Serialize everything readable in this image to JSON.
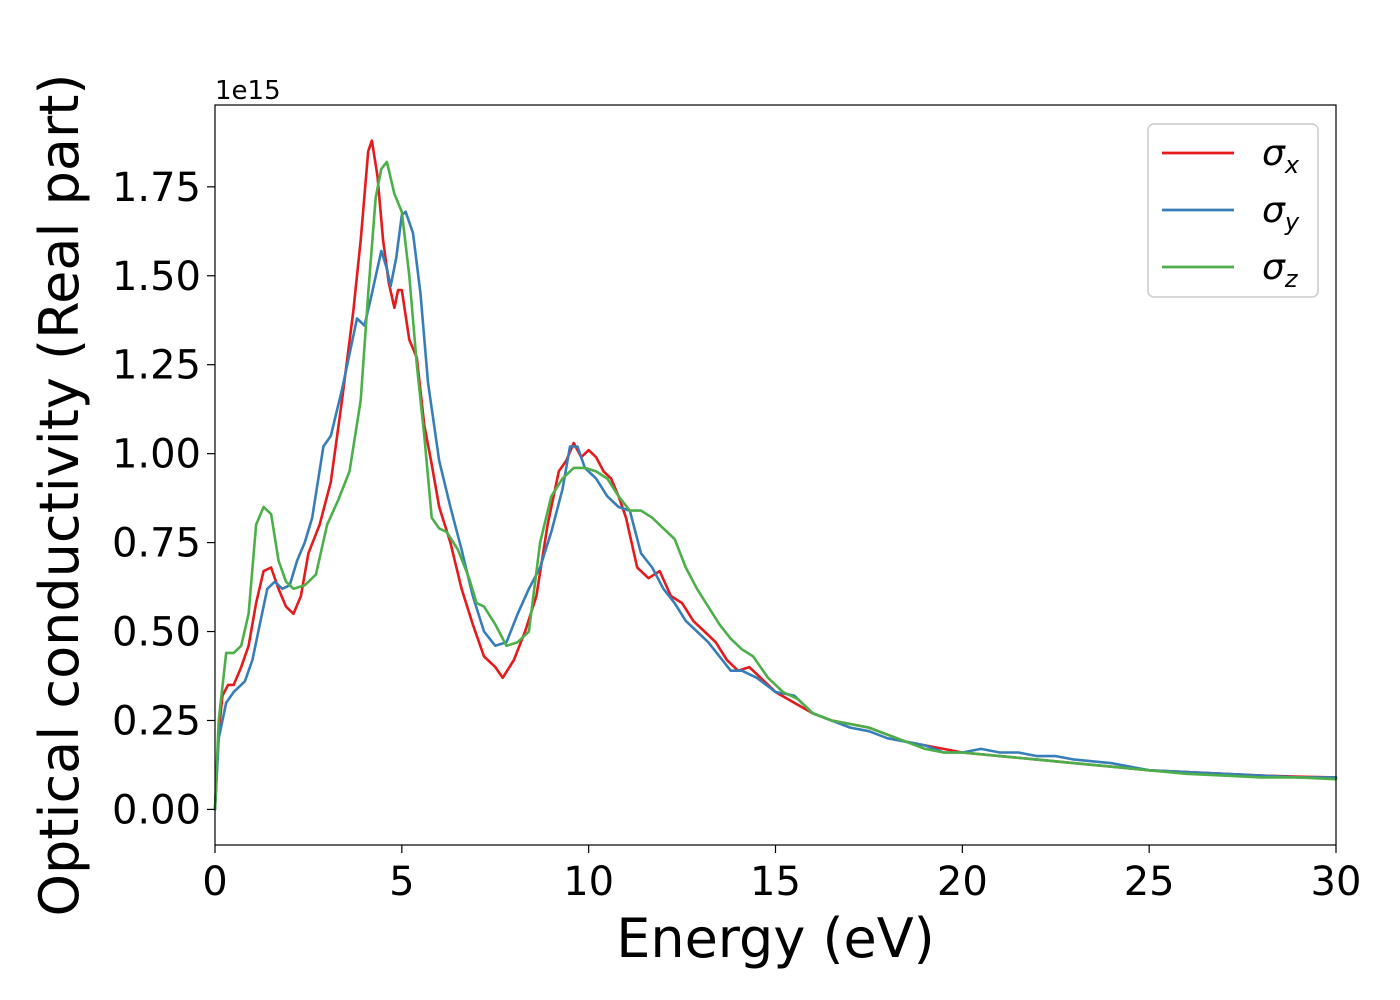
{
  "chart_data": {
    "type": "line",
    "xlabel": "Energy (eV)",
    "ylabel": "Optical conductivity (Real part)",
    "y_offset_label": "1e15",
    "xlim": [
      0,
      30
    ],
    "ylim": [
      -0.1,
      1.98
    ],
    "x_ticks": [
      0,
      5,
      10,
      15,
      20,
      25,
      30
    ],
    "x_tick_labels": [
      "0",
      "5",
      "10",
      "15",
      "20",
      "25",
      "30"
    ],
    "y_ticks": [
      0.0,
      0.25,
      0.5,
      0.75,
      1.0,
      1.25,
      1.5,
      1.75
    ],
    "y_tick_labels": [
      "0.00",
      "0.25",
      "0.50",
      "0.75",
      "1.00",
      "1.25",
      "1.50",
      "1.75"
    ],
    "grid": false,
    "legend_position": "top-right",
    "series": [
      {
        "name": "σx",
        "symbol": "σ",
        "subscript": "x",
        "color": "#e41a1c",
        "x": [
          0,
          0.1,
          0.2,
          0.35,
          0.5,
          0.7,
          0.9,
          1.1,
          1.3,
          1.5,
          1.7,
          1.9,
          2.1,
          2.3,
          2.5,
          2.8,
          3.1,
          3.4,
          3.7,
          3.9,
          4.1,
          4.2,
          4.35,
          4.5,
          4.65,
          4.8,
          4.9,
          5.0,
          5.2,
          5.4,
          5.6,
          5.8,
          6.0,
          6.3,
          6.6,
          6.9,
          7.2,
          7.5,
          7.7,
          8.0,
          8.3,
          8.6,
          8.9,
          9.2,
          9.4,
          9.6,
          9.8,
          10.0,
          10.2,
          10.4,
          10.6,
          10.8,
          11.0,
          11.3,
          11.6,
          11.9,
          12.2,
          12.5,
          12.8,
          13.1,
          13.4,
          13.7,
          14.0,
          14.3,
          14.7,
          15.0,
          15.5,
          16.0,
          16.5,
          17.0,
          17.5,
          18.0,
          18.5,
          19.0,
          19.5,
          20.0,
          21.0,
          22.0,
          23.0,
          24.0,
          25.0,
          26.0,
          27.0,
          28.0,
          29.0,
          30.0
        ],
        "y": [
          0.0,
          0.22,
          0.32,
          0.35,
          0.35,
          0.4,
          0.46,
          0.58,
          0.67,
          0.68,
          0.62,
          0.57,
          0.55,
          0.6,
          0.72,
          0.8,
          0.92,
          1.15,
          1.4,
          1.6,
          1.85,
          1.88,
          1.78,
          1.6,
          1.48,
          1.41,
          1.46,
          1.46,
          1.32,
          1.27,
          1.08,
          0.97,
          0.85,
          0.75,
          0.62,
          0.52,
          0.43,
          0.4,
          0.37,
          0.42,
          0.5,
          0.6,
          0.8,
          0.95,
          0.98,
          1.03,
          0.99,
          1.01,
          0.99,
          0.95,
          0.93,
          0.88,
          0.82,
          0.68,
          0.65,
          0.67,
          0.6,
          0.58,
          0.53,
          0.5,
          0.47,
          0.42,
          0.39,
          0.4,
          0.36,
          0.33,
          0.3,
          0.27,
          0.25,
          0.24,
          0.23,
          0.21,
          0.19,
          0.18,
          0.17,
          0.16,
          0.15,
          0.14,
          0.13,
          0.12,
          0.11,
          0.105,
          0.1,
          0.095,
          0.092,
          0.09
        ]
      },
      {
        "name": "σy",
        "symbol": "σ",
        "subscript": "y",
        "color": "#377eb8",
        "x": [
          0,
          0.1,
          0.3,
          0.5,
          0.8,
          1.0,
          1.2,
          1.4,
          1.6,
          1.8,
          2.0,
          2.2,
          2.4,
          2.6,
          2.9,
          3.1,
          3.4,
          3.8,
          4.0,
          4.2,
          4.45,
          4.6,
          4.7,
          4.85,
          5.0,
          5.1,
          5.3,
          5.5,
          5.7,
          6.0,
          6.3,
          6.6,
          6.9,
          7.2,
          7.5,
          7.8,
          8.1,
          8.4,
          8.7,
          9.0,
          9.3,
          9.5,
          9.7,
          9.9,
          10.2,
          10.5,
          10.8,
          11.1,
          11.4,
          11.7,
          12.0,
          12.3,
          12.6,
          12.9,
          13.2,
          13.5,
          13.8,
          14.1,
          14.5,
          15.0,
          15.5,
          16.0,
          16.5,
          17.0,
          17.5,
          18.0,
          18.5,
          19.0,
          19.5,
          20.0,
          20.5,
          21.0,
          21.5,
          22.0,
          22.5,
          23.0,
          24.0,
          25.0,
          26.0,
          27.0,
          28.0,
          29.0,
          30.0
        ],
        "y": [
          0.0,
          0.2,
          0.3,
          0.33,
          0.36,
          0.42,
          0.52,
          0.62,
          0.64,
          0.62,
          0.63,
          0.7,
          0.75,
          0.82,
          1.02,
          1.05,
          1.18,
          1.38,
          1.36,
          1.45,
          1.57,
          1.52,
          1.47,
          1.55,
          1.67,
          1.68,
          1.62,
          1.45,
          1.2,
          0.98,
          0.85,
          0.73,
          0.6,
          0.5,
          0.46,
          0.47,
          0.55,
          0.62,
          0.68,
          0.78,
          0.9,
          1.02,
          1.02,
          0.96,
          0.93,
          0.88,
          0.85,
          0.84,
          0.72,
          0.68,
          0.62,
          0.58,
          0.53,
          0.5,
          0.47,
          0.43,
          0.39,
          0.39,
          0.37,
          0.33,
          0.32,
          0.27,
          0.25,
          0.23,
          0.22,
          0.2,
          0.19,
          0.18,
          0.16,
          0.16,
          0.17,
          0.16,
          0.16,
          0.15,
          0.15,
          0.14,
          0.13,
          0.11,
          0.105,
          0.1,
          0.095,
          0.09,
          0.09
        ]
      },
      {
        "name": "σz",
        "symbol": "σ",
        "subscript": "z",
        "color": "#4daf4a",
        "x": [
          0,
          0.1,
          0.3,
          0.5,
          0.7,
          0.9,
          1.1,
          1.3,
          1.5,
          1.7,
          1.9,
          2.1,
          2.4,
          2.7,
          3.0,
          3.3,
          3.6,
          3.9,
          4.1,
          4.3,
          4.45,
          4.6,
          4.8,
          5.0,
          5.2,
          5.4,
          5.6,
          5.8,
          6.0,
          6.2,
          6.5,
          6.8,
          7.0,
          7.2,
          7.5,
          7.8,
          8.1,
          8.4,
          8.7,
          9.0,
          9.3,
          9.6,
          9.9,
          10.2,
          10.5,
          10.8,
          11.1,
          11.4,
          11.7,
          12.0,
          12.3,
          12.6,
          12.9,
          13.2,
          13.5,
          13.8,
          14.1,
          14.4,
          14.8,
          15.2,
          15.6,
          16.0,
          16.5,
          17.0,
          17.5,
          18.0,
          18.5,
          19.0,
          19.5,
          20.0,
          21.0,
          22.0,
          23.0,
          24.0,
          25.0,
          26.0,
          27.0,
          28.0,
          29.0,
          30.0
        ],
        "y": [
          0.0,
          0.25,
          0.44,
          0.44,
          0.46,
          0.55,
          0.8,
          0.85,
          0.83,
          0.7,
          0.64,
          0.62,
          0.63,
          0.66,
          0.8,
          0.87,
          0.95,
          1.15,
          1.45,
          1.72,
          1.8,
          1.82,
          1.73,
          1.68,
          1.5,
          1.25,
          1.05,
          0.82,
          0.79,
          0.78,
          0.73,
          0.65,
          0.58,
          0.57,
          0.52,
          0.46,
          0.47,
          0.5,
          0.75,
          0.88,
          0.93,
          0.96,
          0.96,
          0.95,
          0.93,
          0.88,
          0.84,
          0.84,
          0.82,
          0.79,
          0.76,
          0.68,
          0.62,
          0.57,
          0.52,
          0.48,
          0.45,
          0.43,
          0.37,
          0.33,
          0.31,
          0.27,
          0.25,
          0.24,
          0.23,
          0.21,
          0.19,
          0.17,
          0.16,
          0.16,
          0.15,
          0.14,
          0.13,
          0.12,
          0.11,
          0.1,
          0.095,
          0.09,
          0.09,
          0.085
        ]
      }
    ]
  }
}
